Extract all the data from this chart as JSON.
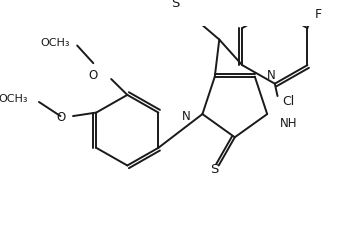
{
  "bg_color": "#ffffff",
  "line_color": "#1a1a1a",
  "bond_width": 1.4,
  "figsize": [
    3.62,
    2.3
  ],
  "dpi": 100,
  "xlim": [
    0,
    362
  ],
  "ylim": [
    0,
    230
  ]
}
